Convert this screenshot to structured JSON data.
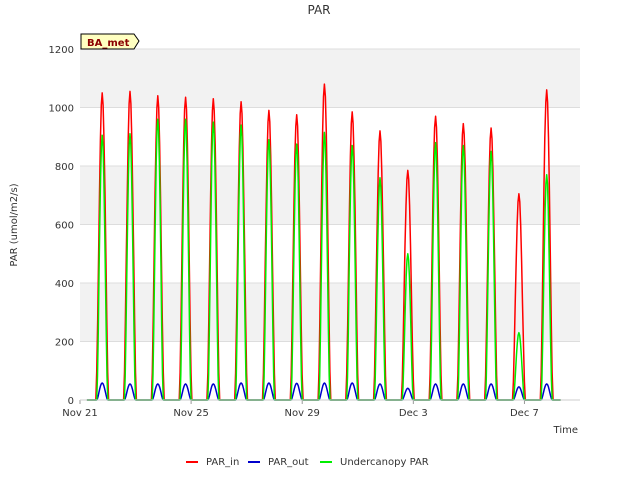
{
  "chart_data": {
    "type": "line",
    "title": "PAR",
    "xlabel": "Time",
    "ylabel": "PAR (umol/m2/s)",
    "station_label": "BA_met",
    "ylim": [
      0,
      1200
    ],
    "yticks": [
      0,
      200,
      400,
      600,
      800,
      1000,
      1200
    ],
    "xlim": [
      0,
      18
    ],
    "xticks": [
      {
        "day": 0,
        "label": "Nov 21"
      },
      {
        "day": 4,
        "label": "Nov 25"
      },
      {
        "day": 8,
        "label": "Nov 29"
      },
      {
        "day": 12,
        "label": "Dec 3"
      },
      {
        "day": 16,
        "label": "Dec 7"
      }
    ],
    "days": [
      0.8,
      1.8,
      2.8,
      3.8,
      4.8,
      5.8,
      6.8,
      7.8,
      8.8,
      9.8,
      10.8,
      11.8,
      12.8,
      13.8,
      14.8,
      15.8,
      16.8
    ],
    "series": [
      {
        "name": "PAR_in",
        "color": "#ff0000",
        "peaks": [
          1050,
          1055,
          1040,
          1035,
          1030,
          1020,
          990,
          975,
          1080,
          985,
          920,
          785,
          970,
          945,
          930,
          705,
          1060
        ]
      },
      {
        "name": "PAR_out",
        "color": "#0000cc",
        "peaks": [
          58,
          55,
          55,
          55,
          55,
          58,
          58,
          57,
          58,
          58,
          55,
          40,
          55,
          55,
          55,
          45,
          55
        ]
      },
      {
        "name": "Undercanopy PAR",
        "color": "#00ee00",
        "peaks": [
          905,
          910,
          960,
          960,
          950,
          940,
          890,
          875,
          915,
          870,
          760,
          500,
          880,
          870,
          850,
          230,
          770
        ]
      }
    ],
    "grid": true,
    "legend_position": "bottom-center"
  }
}
